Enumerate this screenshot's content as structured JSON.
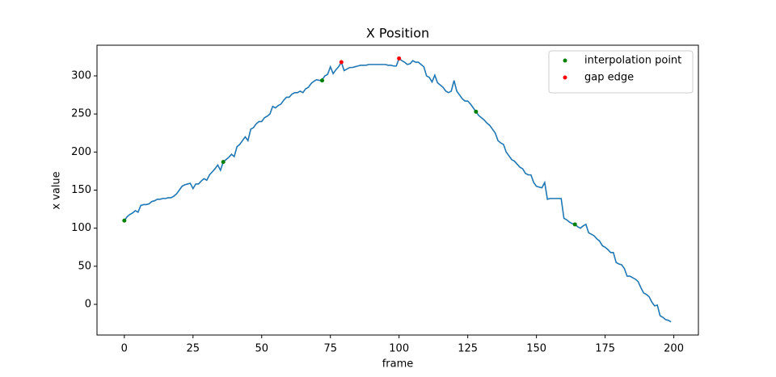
{
  "chart_data": {
    "type": "line",
    "title": "X Position",
    "xlabel": "frame",
    "ylabel": "x value",
    "x": [
      0,
      1,
      2,
      3,
      4,
      5,
      6,
      7,
      8,
      9,
      10,
      11,
      12,
      13,
      14,
      15,
      16,
      17,
      18,
      19,
      20,
      21,
      22,
      23,
      24,
      25,
      26,
      27,
      28,
      29,
      30,
      31,
      32,
      33,
      34,
      35,
      36,
      37,
      38,
      39,
      40,
      41,
      42,
      43,
      44,
      45,
      46,
      47,
      48,
      49,
      50,
      51,
      52,
      53,
      54,
      55,
      56,
      57,
      58,
      59,
      60,
      61,
      62,
      63,
      64,
      65,
      66,
      67,
      68,
      69,
      70,
      71,
      72,
      73,
      74,
      75,
      76,
      77,
      78,
      79,
      80,
      81,
      82,
      83,
      84,
      85,
      86,
      87,
      88,
      89,
      90,
      91,
      92,
      93,
      94,
      95,
      96,
      97,
      98,
      99,
      100,
      101,
      102,
      103,
      104,
      105,
      106,
      107,
      108,
      109,
      110,
      111,
      112,
      113,
      114,
      115,
      116,
      117,
      118,
      119,
      120,
      121,
      122,
      123,
      124,
      125,
      126,
      127,
      128,
      129,
      130,
      131,
      132,
      133,
      134,
      135,
      136,
      137,
      138,
      139,
      140,
      141,
      142,
      143,
      144,
      145,
      146,
      147,
      148,
      149,
      150,
      151,
      152,
      153,
      154,
      155,
      156,
      157,
      158,
      159,
      160,
      161,
      162,
      163,
      164,
      165,
      166,
      167,
      168,
      169,
      170,
      171,
      172,
      173,
      174,
      175,
      176,
      177,
      178,
      179,
      180,
      181,
      182,
      183,
      184,
      185,
      186,
      187,
      188,
      189,
      190,
      191,
      192,
      193,
      194,
      195,
      196,
      197,
      198,
      199
    ],
    "series": [
      {
        "color": "#1f77b4",
        "values": [
          110,
          115,
          118,
          120,
          123,
          121,
          130,
          131,
          131,
          132,
          135,
          136,
          138,
          138,
          139,
          139,
          140,
          140,
          142,
          145,
          150,
          155,
          157,
          158,
          159,
          152,
          158,
          158,
          162,
          165,
          163,
          170,
          174,
          178,
          183,
          176,
          187,
          190,
          193,
          197,
          194,
          207,
          210,
          215,
          220,
          215,
          230,
          232,
          237,
          240,
          240,
          245,
          247,
          250,
          260,
          258,
          261,
          263,
          268,
          272,
          272,
          276,
          278,
          278,
          280,
          278,
          283,
          285,
          290,
          293,
          295,
          294,
          295,
          300,
          302,
          312,
          303,
          308,
          312,
          318,
          307,
          309,
          311,
          311,
          312,
          313,
          314,
          314,
          314,
          315,
          315,
          315,
          315,
          315,
          315,
          315,
          314,
          314,
          313,
          313,
          323,
          320,
          318,
          315,
          316,
          320,
          318,
          318,
          315,
          312,
          300,
          298,
          292,
          301,
          291,
          288,
          285,
          280,
          278,
          280,
          294,
          280,
          275,
          270,
          267,
          267,
          263,
          258,
          253,
          248,
          245,
          242,
          238,
          235,
          230,
          225,
          215,
          212,
          210,
          200,
          195,
          190,
          188,
          184,
          180,
          178,
          172,
          170,
          170,
          160,
          155,
          154,
          153,
          160,
          138,
          139,
          139,
          139,
          139,
          139,
          113,
          111,
          108,
          106,
          105,
          102,
          100,
          103,
          105,
          94,
          92,
          90,
          86,
          83,
          77,
          75,
          72,
          68,
          68,
          55,
          53,
          52,
          47,
          37,
          37,
          35,
          33,
          30,
          22,
          15,
          13,
          10,
          3,
          -2,
          -1,
          -15,
          -17,
          -20,
          -21,
          -23
        ]
      }
    ],
    "scatter": [
      {
        "name": "interpolation point",
        "color": "#008000",
        "x": [
          0,
          36,
          72,
          128,
          164
        ],
        "y": [
          110,
          187,
          294,
          253,
          105
        ]
      },
      {
        "name": "gap edge",
        "color": "#ff0000",
        "x": [
          79,
          100
        ],
        "y": [
          318,
          323
        ]
      }
    ],
    "xlim": [
      -9.95,
      208.95
    ],
    "xticks": [
      0,
      25,
      50,
      75,
      100,
      125,
      150,
      175,
      200
    ],
    "ylim": [
      -40.3,
      340.3
    ],
    "yticks": [
      0,
      50,
      100,
      150,
      200,
      250,
      300
    ],
    "legend": "upper right",
    "grid": false
  }
}
